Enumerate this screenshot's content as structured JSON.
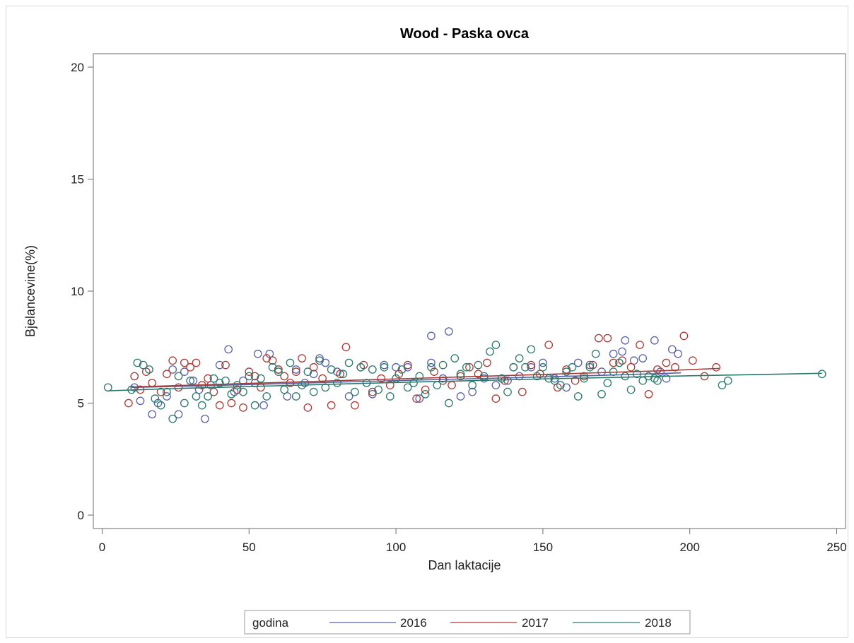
{
  "chart_data": {
    "type": "scatter",
    "title": "Wood - Paska ovca",
    "xlabel": "Dan laktacije",
    "ylabel": "Bjelancevine(%)",
    "xlim": [
      -3,
      253
    ],
    "ylim": [
      -0.6,
      20.6
    ],
    "xticks": [
      0,
      50,
      100,
      150,
      200,
      250
    ],
    "yticks": [
      0,
      5,
      10,
      15,
      20
    ],
    "grid": false,
    "legend": {
      "title": "godina",
      "placement": "bottom-center"
    },
    "series": [
      {
        "name": "2016",
        "color": "#5a5fa8",
        "curve": {
          "x": [
            10,
            30,
            50,
            70,
            90,
            110,
            130,
            150,
            170,
            190,
            197
          ],
          "y": [
            5.7,
            5.76,
            5.83,
            5.9,
            5.97,
            6.04,
            6.1,
            6.17,
            6.24,
            6.32,
            6.35
          ]
        },
        "points": {
          "x": [
            11,
            13,
            17,
            19,
            22,
            24,
            26,
            28,
            31,
            33,
            35,
            37,
            40,
            43,
            45,
            48,
            52,
            53,
            55,
            57,
            60,
            63,
            66,
            69,
            72,
            74,
            76,
            80,
            84,
            88,
            92,
            96,
            100,
            104,
            108,
            112,
            112,
            116,
            118,
            122,
            126,
            130,
            134,
            138,
            142,
            146,
            150,
            154,
            158,
            162,
            166,
            170,
            174,
            177,
            178,
            181,
            184,
            188,
            190,
            192,
            194,
            196
          ],
          "y": [
            5.7,
            5.1,
            4.5,
            5.0,
            5.3,
            6.5,
            4.5,
            6.4,
            6.0,
            5.6,
            4.3,
            5.8,
            6.7,
            7.4,
            5.5,
            6.0,
            5.9,
            7.2,
            4.9,
            7.2,
            6.5,
            5.3,
            6.5,
            5.9,
            6.3,
            7.0,
            6.8,
            6.4,
            5.3,
            6.6,
            5.4,
            6.7,
            6.6,
            6.6,
            5.2,
            6.8,
            8.0,
            6.1,
            8.2,
            5.3,
            5.5,
            6.1,
            5.8,
            6.0,
            6.2,
            6.6,
            6.8,
            6.1,
            5.7,
            6.8,
            6.7,
            6.4,
            7.2,
            7.3,
            7.8,
            6.9,
            7.0,
            7.8,
            6.4,
            6.1,
            7.4,
            7.2
          ]
        }
      },
      {
        "name": "2017",
        "color": "#a83b35",
        "curve": {
          "x": [
            10,
            30,
            50,
            70,
            90,
            110,
            130,
            150,
            170,
            190,
            210
          ],
          "y": [
            5.72,
            5.8,
            5.88,
            5.96,
            6.04,
            6.12,
            6.2,
            6.28,
            6.36,
            6.44,
            6.55
          ]
        },
        "points": {
          "x": [
            9,
            11,
            13,
            15,
            17,
            20,
            22,
            24,
            26,
            28,
            30,
            32,
            34,
            36,
            38,
            40,
            42,
            44,
            46,
            48,
            50,
            52,
            54,
            56,
            58,
            60,
            62,
            64,
            66,
            68,
            70,
            72,
            75,
            78,
            81,
            83,
            86,
            89,
            92,
            95,
            98,
            101,
            104,
            107,
            110,
            113,
            116,
            119,
            122,
            125,
            128,
            131,
            134,
            137,
            140,
            143,
            146,
            149,
            152,
            155,
            158,
            161,
            164,
            167,
            169,
            172,
            174,
            177,
            180,
            183,
            186,
            189,
            192,
            195,
            198,
            201,
            205,
            209
          ],
          "y": [
            5.0,
            6.2,
            5.6,
            6.4,
            5.9,
            5.5,
            6.3,
            6.9,
            5.7,
            6.8,
            6.6,
            6.8,
            5.8,
            6.1,
            5.5,
            4.9,
            6.7,
            5.0,
            5.6,
            4.8,
            6.4,
            6.2,
            5.7,
            7.0,
            6.9,
            6.5,
            6.2,
            5.9,
            6.4,
            7.0,
            4.8,
            6.6,
            6.1,
            4.9,
            6.3,
            7.5,
            4.9,
            6.7,
            5.5,
            6.1,
            5.8,
            6.3,
            6.7,
            5.2,
            5.6,
            6.4,
            6.0,
            5.8,
            6.2,
            6.6,
            6.3,
            6.8,
            5.2,
            6.0,
            6.6,
            5.5,
            6.7,
            6.3,
            7.6,
            5.7,
            6.5,
            6.0,
            6.2,
            6.7,
            7.9,
            7.9,
            6.8,
            6.9,
            6.6,
            7.6,
            5.4,
            6.5,
            6.8,
            6.6,
            8.0,
            6.9,
            6.2,
            6.6
          ]
        }
      },
      {
        "name": "2018",
        "color": "#2a7a6b",
        "curve": {
          "x": [
            2,
            25,
            50,
            75,
            100,
            125,
            150,
            175,
            200,
            225,
            245
          ],
          "y": [
            5.55,
            5.65,
            5.74,
            5.83,
            5.92,
            6.0,
            6.08,
            6.15,
            6.22,
            6.28,
            6.33
          ]
        },
        "points": {
          "x": [
            2,
            10,
            12,
            14,
            16,
            18,
            20,
            22,
            24,
            26,
            28,
            30,
            32,
            34,
            36,
            38,
            40,
            42,
            44,
            46,
            48,
            50,
            52,
            54,
            56,
            58,
            60,
            62,
            64,
            66,
            68,
            70,
            72,
            74,
            76,
            78,
            80,
            82,
            84,
            86,
            88,
            90,
            92,
            94,
            96,
            98,
            100,
            102,
            104,
            106,
            108,
            110,
            112,
            114,
            116,
            118,
            120,
            122,
            124,
            126,
            128,
            130,
            132,
            134,
            136,
            138,
            140,
            142,
            144,
            146,
            148,
            150,
            152,
            154,
            156,
            158,
            160,
            162,
            164,
            166,
            168,
            170,
            172,
            174,
            176,
            178,
            180,
            182,
            184,
            186,
            188,
            189,
            211,
            213,
            245
          ],
          "y": [
            5.7,
            5.6,
            6.8,
            6.7,
            6.5,
            5.2,
            4.9,
            5.5,
            4.3,
            6.2,
            5.0,
            6.0,
            5.3,
            4.9,
            5.3,
            6.1,
            5.9,
            6.0,
            5.4,
            5.8,
            5.5,
            6.2,
            4.9,
            6.1,
            5.3,
            6.6,
            6.4,
            5.6,
            6.8,
            5.3,
            5.8,
            6.4,
            5.5,
            6.9,
            5.7,
            6.5,
            5.9,
            6.3,
            6.8,
            5.5,
            6.6,
            5.9,
            6.5,
            5.6,
            6.6,
            5.3,
            6.1,
            6.5,
            5.7,
            5.9,
            6.2,
            5.4,
            6.6,
            5.8,
            6.7,
            5.0,
            7.0,
            6.3,
            6.6,
            5.8,
            6.7,
            6.2,
            7.3,
            7.6,
            6.1,
            5.5,
            6.6,
            7.0,
            6.6,
            7.4,
            6.2,
            6.6,
            6.1,
            6.0,
            5.8,
            6.4,
            6.6,
            5.3,
            6.1,
            6.6,
            7.2,
            5.4,
            5.9,
            6.4,
            6.8,
            6.2,
            5.6,
            6.3,
            6.0,
            6.2,
            6.1,
            6.0,
            5.8,
            6.0,
            6.3
          ]
        }
      }
    ]
  }
}
